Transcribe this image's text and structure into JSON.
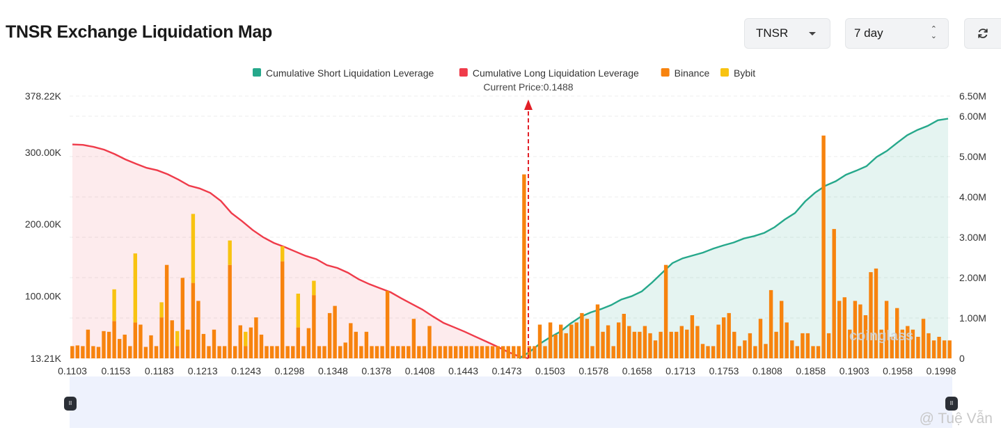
{
  "header": {
    "title": "TNSR Exchange Liquidation Map",
    "symbol_value": "TNSR",
    "period_value": "7 day"
  },
  "icons": {
    "refresh": "refresh-icon",
    "symbol_dropdown": "caret-down-icon",
    "period_select": "up-down-chevron-icon"
  },
  "watermark": "@ Tuệ Vẫn",
  "logo_text": "coinglass",
  "colors": {
    "short_line": "#26a88b",
    "long_line": "#ef3b4a",
    "binance": "#f7830e",
    "bybit": "#f8c311"
  },
  "chart_data": {
    "type": "bar",
    "current_price_label": "Current Price:0.1488",
    "current_price": 0.1488,
    "legend": [
      {
        "label": "Cumulative Short Liquidation Leverage",
        "color": "#26a88b"
      },
      {
        "label": "Cumulative Long Liquidation Leverage",
        "color": "#ef3b4a"
      },
      {
        "label": "Binance",
        "color": "#f7830e"
      },
      {
        "label": "Bybit",
        "color": "#f8c311"
      }
    ],
    "x_tick_labels": [
      "0.1103",
      "0.1153",
      "0.1183",
      "0.1213",
      "0.1243",
      "0.1298",
      "0.1348",
      "0.1378",
      "0.1408",
      "0.1443",
      "0.1473",
      "0.1503",
      "0.1578",
      "0.1658",
      "0.1713",
      "0.1753",
      "0.1808",
      "0.1858",
      "0.1903",
      "0.1958",
      "0.1998"
    ],
    "left_axis": {
      "tick_labels": [
        "378.22K",
        "300.00K",
        "200.00K",
        "100.00K",
        "13.21K"
      ],
      "ticks": [
        378220,
        300000,
        200000,
        100000,
        13210
      ],
      "range": [
        13210,
        378220
      ]
    },
    "right_axis": {
      "tick_labels": [
        "6.50M",
        "6.00M",
        "5.00M",
        "4.00M",
        "3.00M",
        "2.00M",
        "1.00M",
        "0"
      ],
      "ticks": [
        6500000,
        6000000,
        5000000,
        4000000,
        3000000,
        2000000,
        1000000,
        0
      ],
      "range": [
        0,
        6500000
      ]
    },
    "binance": [
      17,
      18,
      17,
      40,
      17,
      16,
      38,
      37,
      52,
      27,
      33,
      17,
      50,
      47,
      16,
      32,
      17,
      57,
      130,
      53,
      17,
      112,
      40,
      105,
      80,
      34,
      17,
      40,
      17,
      17,
      130,
      17,
      46,
      17,
      43,
      57,
      33,
      17,
      17,
      17,
      135,
      17,
      17,
      43,
      17,
      42,
      88,
      17,
      17,
      63,
      73,
      17,
      22,
      49,
      37,
      17,
      37,
      17,
      17,
      17,
      94,
      17,
      17,
      17,
      17,
      55,
      17,
      17,
      45,
      17,
      17,
      17,
      17,
      17,
      17,
      17,
      17,
      17,
      17,
      17,
      17,
      17,
      17,
      17,
      17,
      17,
      256,
      17,
      17,
      47,
      17,
      50,
      33,
      47,
      35,
      47,
      50,
      63,
      55,
      17,
      75,
      37,
      46,
      17,
      50,
      62,
      45,
      37,
      37,
      45,
      35,
      25,
      37,
      130,
      37,
      37,
      45,
      40,
      60,
      45,
      20,
      17,
      17,
      47,
      57,
      63,
      37,
      17,
      25,
      35,
      17,
      55,
      20,
      95,
      37,
      80,
      50,
      25,
      17,
      35,
      35,
      17,
      17,
      310,
      35,
      180,
      80,
      85,
      40,
      80,
      75,
      60,
      120,
      125,
      40,
      80,
      30,
      70,
      40,
      45,
      40,
      30,
      55,
      35,
      25,
      30,
      25,
      25
    ],
    "bybit": [
      0,
      0,
      0,
      0,
      0,
      0,
      0,
      0,
      44,
      0,
      0,
      0,
      96,
      0,
      0,
      0,
      0,
      21,
      0,
      0,
      21,
      0,
      0,
      96,
      0,
      0,
      0,
      0,
      0,
      0,
      34,
      0,
      0,
      20,
      0,
      0,
      0,
      0,
      0,
      0,
      21,
      0,
      0,
      47,
      0,
      0,
      20,
      0,
      0,
      0,
      0,
      0,
      0,
      0,
      0,
      0,
      0,
      0,
      0,
      0,
      0,
      0,
      0,
      0,
      0,
      0,
      0,
      0,
      0,
      0,
      0,
      0,
      0,
      0,
      0,
      0,
      0,
      0,
      0,
      0,
      0,
      0,
      0,
      0,
      0,
      0,
      0,
      0,
      0,
      0,
      0,
      0,
      0,
      0,
      0,
      0,
      0,
      0,
      0,
      0,
      0,
      0,
      0,
      0,
      0,
      0,
      0,
      0,
      0,
      0,
      0,
      0,
      0,
      0,
      0,
      0,
      0,
      0,
      0,
      0,
      0,
      0,
      0,
      0,
      0,
      0,
      0,
      0,
      0,
      0,
      0,
      0,
      0,
      0,
      0,
      0,
      0,
      0,
      0,
      0,
      0,
      0,
      0,
      0,
      0,
      0,
      0,
      0,
      0,
      0,
      0,
      0,
      0,
      0,
      0,
      0,
      0,
      0,
      0,
      0,
      0,
      0,
      0,
      0,
      0,
      0,
      0,
      0
    ],
    "cumulative_long_leverage": [
      5300000,
      5290000,
      5240000,
      5170000,
      5060000,
      4930000,
      4820000,
      4720000,
      4660000,
      4560000,
      4430000,
      4280000,
      4210000,
      4100000,
      3900000,
      3600000,
      3400000,
      3180000,
      3000000,
      2860000,
      2760000,
      2650000,
      2540000,
      2460000,
      2310000,
      2240000,
      2120000,
      1960000,
      1840000,
      1740000,
      1640000,
      1490000,
      1350000,
      1210000,
      1040000,
      880000,
      770000,
      660000,
      540000,
      420000,
      300000,
      170000,
      60000,
      0
    ],
    "cumulative_short_leverage": [
      0,
      160000,
      360000,
      520000,
      660000,
      860000,
      1030000,
      1140000,
      1220000,
      1320000,
      1460000,
      1540000,
      1660000,
      1880000,
      2120000,
      2360000,
      2480000,
      2550000,
      2620000,
      2720000,
      2800000,
      2870000,
      2970000,
      3030000,
      3110000,
      3250000,
      3440000,
      3600000,
      3890000,
      4110000,
      4280000,
      4390000,
      4550000,
      4650000,
      4760000,
      4990000,
      5140000,
      5340000,
      5530000,
      5660000,
      5760000,
      5900000,
      5940000
    ]
  }
}
